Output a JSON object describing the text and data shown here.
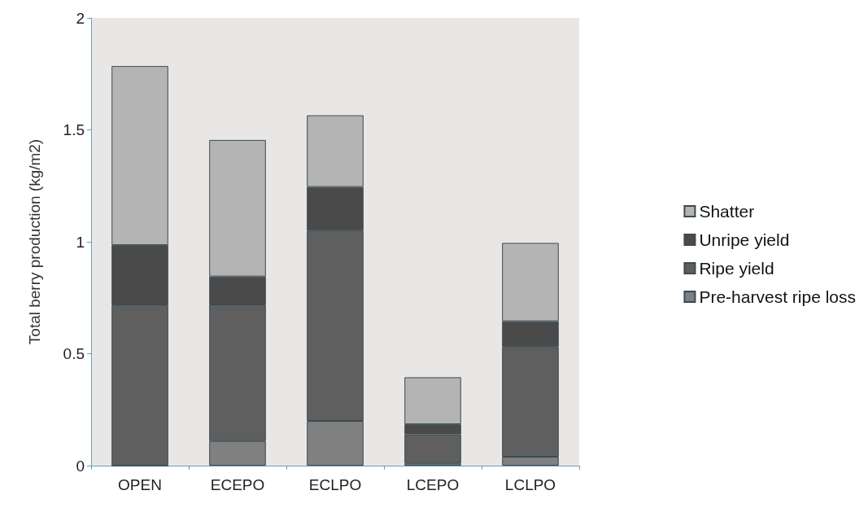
{
  "chart_data": {
    "type": "bar",
    "stacked": true,
    "ylabel": "Total berry production (kg/m2)",
    "categories": [
      "OPEN",
      "ECEPO",
      "ECLPO",
      "LCEPO",
      "LCLPO"
    ],
    "series": [
      {
        "name": "Pre-harvest ripe loss",
        "color": "#808080",
        "values": [
          0,
          0.11,
          0.2,
          0.01,
          0.04
        ]
      },
      {
        "name": "Ripe yield",
        "color": "#5f5f5f",
        "values": [
          0.72,
          0.61,
          0.85,
          0.13,
          0.49
        ]
      },
      {
        "name": "Unripe yield",
        "color": "#4a4a4a",
        "values": [
          0.265,
          0.125,
          0.195,
          0.045,
          0.115
        ]
      },
      {
        "name": "Shatter",
        "color": "#b4b4b4",
        "values": [
          0.8,
          0.61,
          0.32,
          0.21,
          0.35
        ]
      }
    ],
    "ylim": [
      0,
      2
    ],
    "yticks": [
      0,
      0.5,
      1,
      1.5,
      2
    ],
    "grid": false,
    "legend": "right"
  }
}
